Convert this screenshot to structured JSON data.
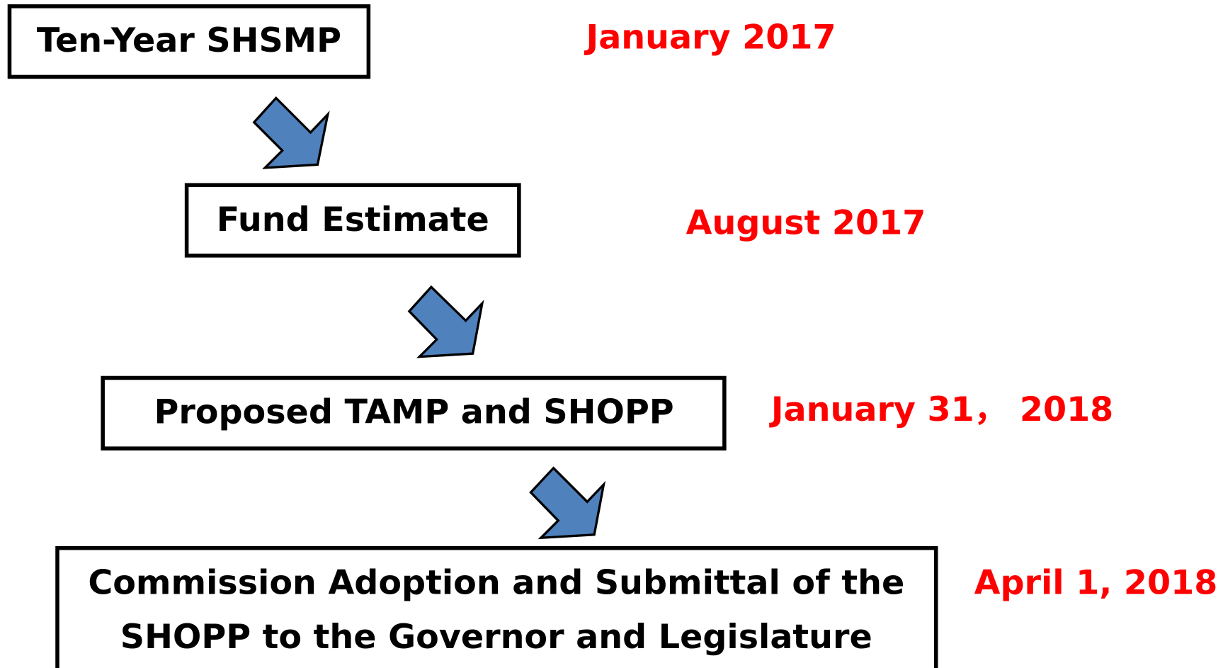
{
  "steps": [
    {
      "label": [
        "Ten-Year SHSMP"
      ],
      "date": "January 2017"
    },
    {
      "label": [
        "Fund Estimate"
      ],
      "date": "August 2017"
    },
    {
      "label": [
        "Proposed TAMP and SHOPP"
      ],
      "date": "January 31， 2018"
    },
    {
      "label": [
        "Commission Adoption and Submittal of the",
        "SHOPP to the Governor and Legislature"
      ],
      "date": "April 1, 2018"
    }
  ]
}
